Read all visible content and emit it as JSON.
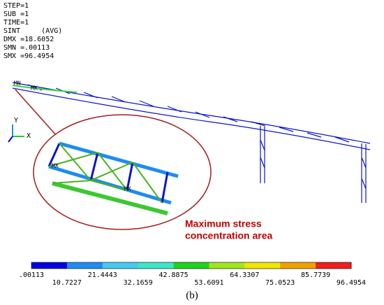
{
  "header": [
    "STEP=1",
    "SUB =1",
    "TIME=1",
    "SINT     (AVG)",
    "DMX =18.6052",
    "SMN =.00113",
    "SMX =96.4954"
  ],
  "annotation": [
    "Maximum stress",
    "concentration area"
  ],
  "legend": {
    "colors": [
      "#0000e0",
      "#1e8cf0",
      "#46c8f0",
      "#3ce6c8",
      "#1ed21e",
      "#a0e61e",
      "#f0e600",
      "#f0a000",
      "#f01e1e"
    ],
    "labels": [
      ".00113",
      "10.7227",
      "21.4443",
      "32.1659",
      "42.8875",
      "53.6091",
      "64.3307",
      "75.0523",
      "85.7739",
      "96.4954"
    ]
  },
  "caption": "(b)"
}
